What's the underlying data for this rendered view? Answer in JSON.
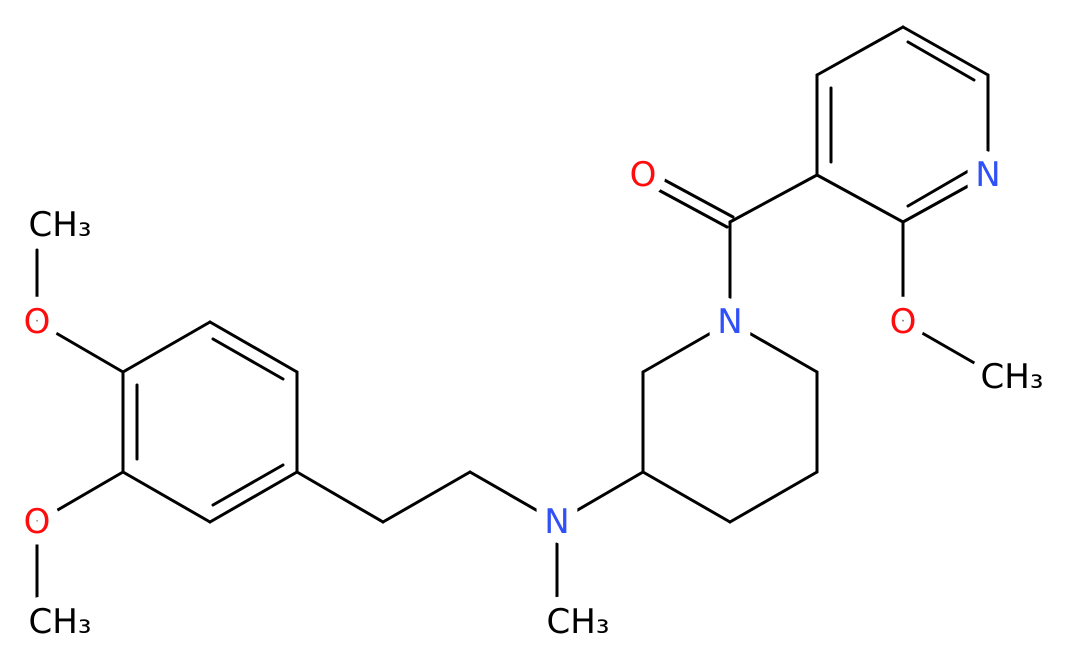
{
  "atoms": [
    {
      "label": "O"
    },
    {
      "label": "N"
    },
    {
      "label": "N"
    },
    {
      "label": "O"
    },
    {
      "label": "CH₃"
    },
    {
      "label": "N"
    },
    {
      "label": "CH₃"
    },
    {
      "label": "O"
    },
    {
      "label": "CH₃"
    },
    {
      "label": "O"
    },
    {
      "label": "CH₃"
    }
  ]
}
